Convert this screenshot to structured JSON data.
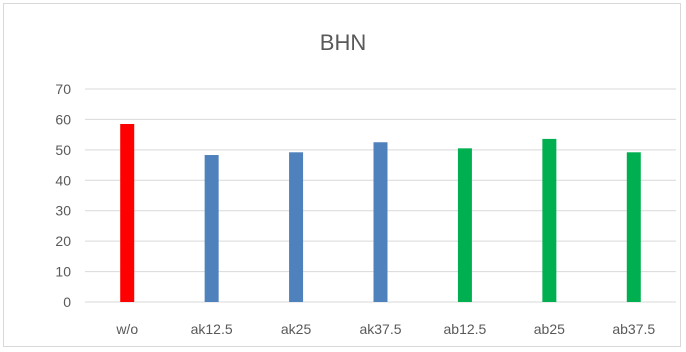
{
  "chart_data": {
    "type": "bar",
    "title": "BHN",
    "categories": [
      "w/o",
      "ak12.5",
      "ak25",
      "ak37.5",
      "ab12.5",
      "ab25",
      "ab37.5"
    ],
    "values": [
      58.5,
      48.3,
      49.2,
      52.5,
      50.5,
      53.6,
      49.2
    ],
    "bar_colors": [
      "#ff0000",
      "#4f81bd",
      "#4f81bd",
      "#4f81bd",
      "#00b050",
      "#00b050",
      "#00b050"
    ],
    "ylim": [
      0,
      70
    ],
    "yticks": [
      "0",
      "10",
      "20",
      "30",
      "40",
      "50",
      "60",
      "70"
    ],
    "grid": true,
    "legend": "none",
    "gridline_color": "#d9d9d9"
  }
}
